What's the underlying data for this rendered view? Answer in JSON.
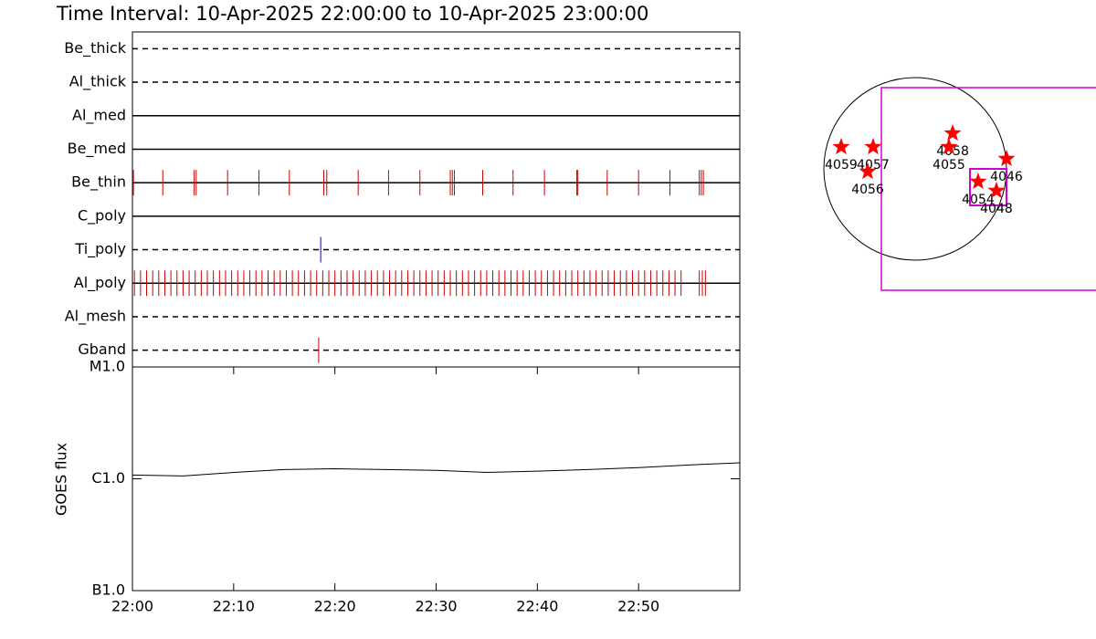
{
  "title": "Time Interval: 10-Apr-2025 22:00:00 to 10-Apr-2025 23:00:00",
  "chart_data": [
    {
      "type": "timeline",
      "xlim": [
        0,
        60
      ],
      "filters": [
        {
          "name": "Be_thick",
          "line": "dashed",
          "color": "#cc0000",
          "exposures": []
        },
        {
          "name": "Al_thick",
          "line": "dashed",
          "color": "#cc0000",
          "exposures": []
        },
        {
          "name": "Al_med",
          "line": "solid",
          "color": "#cc0000",
          "exposures": []
        },
        {
          "name": "Be_med",
          "line": "solid",
          "color": "#cc0000",
          "exposures": []
        },
        {
          "name": "Be_thin",
          "line": "solid",
          "color": "#cc0000",
          "exposures": [
            0.1,
            3.0,
            6.1,
            6.3,
            9.4,
            12.5,
            15.5,
            18.9,
            19.2,
            22.3,
            25.3,
            28.4,
            31.4,
            31.6,
            31.8,
            34.6,
            37.6,
            40.7,
            43.9,
            44.0,
            46.9,
            50.0,
            53.1,
            56.0,
            56.2,
            56.4
          ]
        },
        {
          "name": "C_poly",
          "line": "solid",
          "color": "#cc0000",
          "exposures": []
        },
        {
          "name": "Ti_poly",
          "line": "dashed",
          "color": "#0000cc",
          "exposures": [
            18.6
          ]
        },
        {
          "name": "Al_poly",
          "line": "solid",
          "color": "#cc0000",
          "exposures": [
            0.2,
            0.8,
            1.4,
            2,
            2.6,
            3.2,
            3.8,
            4.4,
            5,
            5.6,
            6.2,
            6.8,
            7.4,
            8,
            8.6,
            9.2,
            9.8,
            10.4,
            11,
            11.6,
            12.2,
            12.8,
            13.4,
            14,
            14.6,
            15.2,
            15.8,
            16.4,
            17,
            17.6,
            18.2,
            18.8,
            19.4,
            20,
            20.6,
            21.2,
            21.8,
            22.4,
            23,
            23.6,
            24.2,
            24.8,
            25.4,
            26,
            26.6,
            27.2,
            27.8,
            28.4,
            29,
            29.6,
            30.2,
            30.8,
            31.4,
            32,
            32.6,
            33.2,
            33.8,
            34.4,
            35,
            35.6,
            36.2,
            36.8,
            37.4,
            38,
            38.6,
            39.2,
            39.8,
            40.4,
            41,
            41.6,
            42.2,
            42.8,
            43.4,
            44,
            44.6,
            45.2,
            45.8,
            46.4,
            47,
            47.6,
            48.2,
            48.8,
            49.4,
            50,
            50.6,
            51.2,
            51.8,
            52.4,
            53,
            53.6,
            54.2,
            56,
            56.3,
            56.6
          ]
        },
        {
          "name": "Al_mesh",
          "line": "dashed",
          "color": "#cc0000",
          "exposures": []
        },
        {
          "name": "Gband",
          "line": "dashed",
          "color": "#cc0000",
          "exposures": [
            18.4
          ]
        }
      ]
    },
    {
      "type": "line",
      "ylabel": "GOES flux",
      "log": true,
      "color": "#000000",
      "x": [
        0,
        5,
        10,
        15,
        20,
        25,
        30,
        35,
        40,
        45,
        50,
        55,
        60
      ],
      "values": [
        1.08e-06,
        1.06e-06,
        1.14e-06,
        1.21e-06,
        1.23e-06,
        1.21e-06,
        1.19e-06,
        1.14e-06,
        1.17e-06,
        1.21e-06,
        1.26e-06,
        1.33e-06,
        1.39e-06
      ],
      "xlim": [
        0,
        60
      ],
      "xticks": [
        {
          "value": 0,
          "label": "22:00"
        },
        {
          "value": 10,
          "label": "22:10"
        },
        {
          "value": 20,
          "label": "22:20"
        },
        {
          "value": 30,
          "label": "22:30"
        },
        {
          "value": 40,
          "label": "22:40"
        },
        {
          "value": 50,
          "label": "22:50"
        }
      ],
      "ylim": [
        1e-07,
        1e-05
      ],
      "yticks": [
        {
          "value": 1e-07,
          "label": "B1.0"
        },
        {
          "value": 1e-06,
          "label": "C1.0"
        },
        {
          "value": 1e-05,
          "label": "M1.0"
        }
      ]
    },
    {
      "type": "map",
      "color": "#ff0000",
      "regions": [
        {
          "label": "4059",
          "x": -778,
          "y": 230
        },
        {
          "label": "4057",
          "x": -442,
          "y": 230
        },
        {
          "label": "4056",
          "x": -499,
          "y": -29
        },
        {
          "label": "4058",
          "x": 394,
          "y": 374
        },
        {
          "label": "4055",
          "x": 355,
          "y": 230
        },
        {
          "label": "4046",
          "x": 960,
          "y": 106
        },
        {
          "label": "4054",
          "x": 662,
          "y": -134
        },
        {
          "label": "4048",
          "x": 854,
          "y": -230
        }
      ]
    }
  ]
}
